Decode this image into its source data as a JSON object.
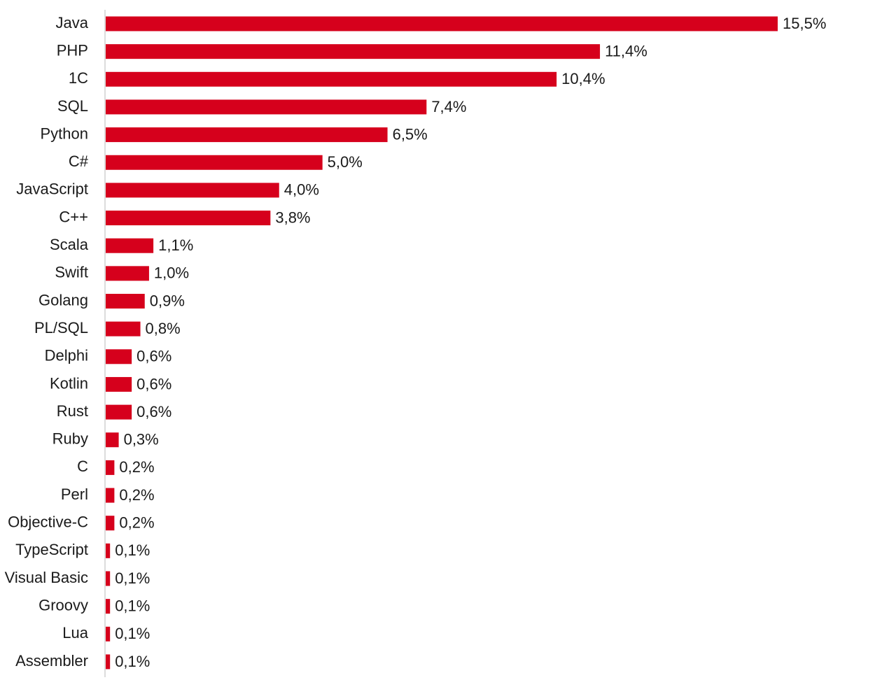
{
  "chart_data": {
    "type": "bar",
    "orientation": "horizontal",
    "color": "#d6001c",
    "categories": [
      "Java",
      "PHP",
      "1C",
      "SQL",
      "Python",
      "C#",
      "JavaScript",
      "C++",
      "Scala",
      "Swift",
      "Golang",
      "PL/SQL",
      "Delphi",
      "Kotlin",
      "Rust",
      "Ruby",
      "C",
      "Perl",
      "Objective-C",
      "TypeScript",
      "Visual Basic",
      "Groovy",
      "Lua",
      "Assembler"
    ],
    "values": [
      15.5,
      11.4,
      10.4,
      7.4,
      6.5,
      5.0,
      4.0,
      3.8,
      1.1,
      1.0,
      0.9,
      0.8,
      0.6,
      0.6,
      0.6,
      0.3,
      0.2,
      0.2,
      0.2,
      0.1,
      0.1,
      0.1,
      0.1,
      0.1
    ],
    "value_labels": [
      "15,5%",
      "11,4%",
      "10,4%",
      "7,4%",
      "6,5%",
      "5,0%",
      "4,0%",
      "3,8%",
      "1,1%",
      "1,0%",
      "0,9%",
      "0,8%",
      "0,6%",
      "0,6%",
      "0,6%",
      "0,3%",
      "0,2%",
      "0,2%",
      "0,2%",
      "0,1%",
      "0,1%",
      "0,1%",
      "0,1%",
      "0,1%"
    ]
  }
}
